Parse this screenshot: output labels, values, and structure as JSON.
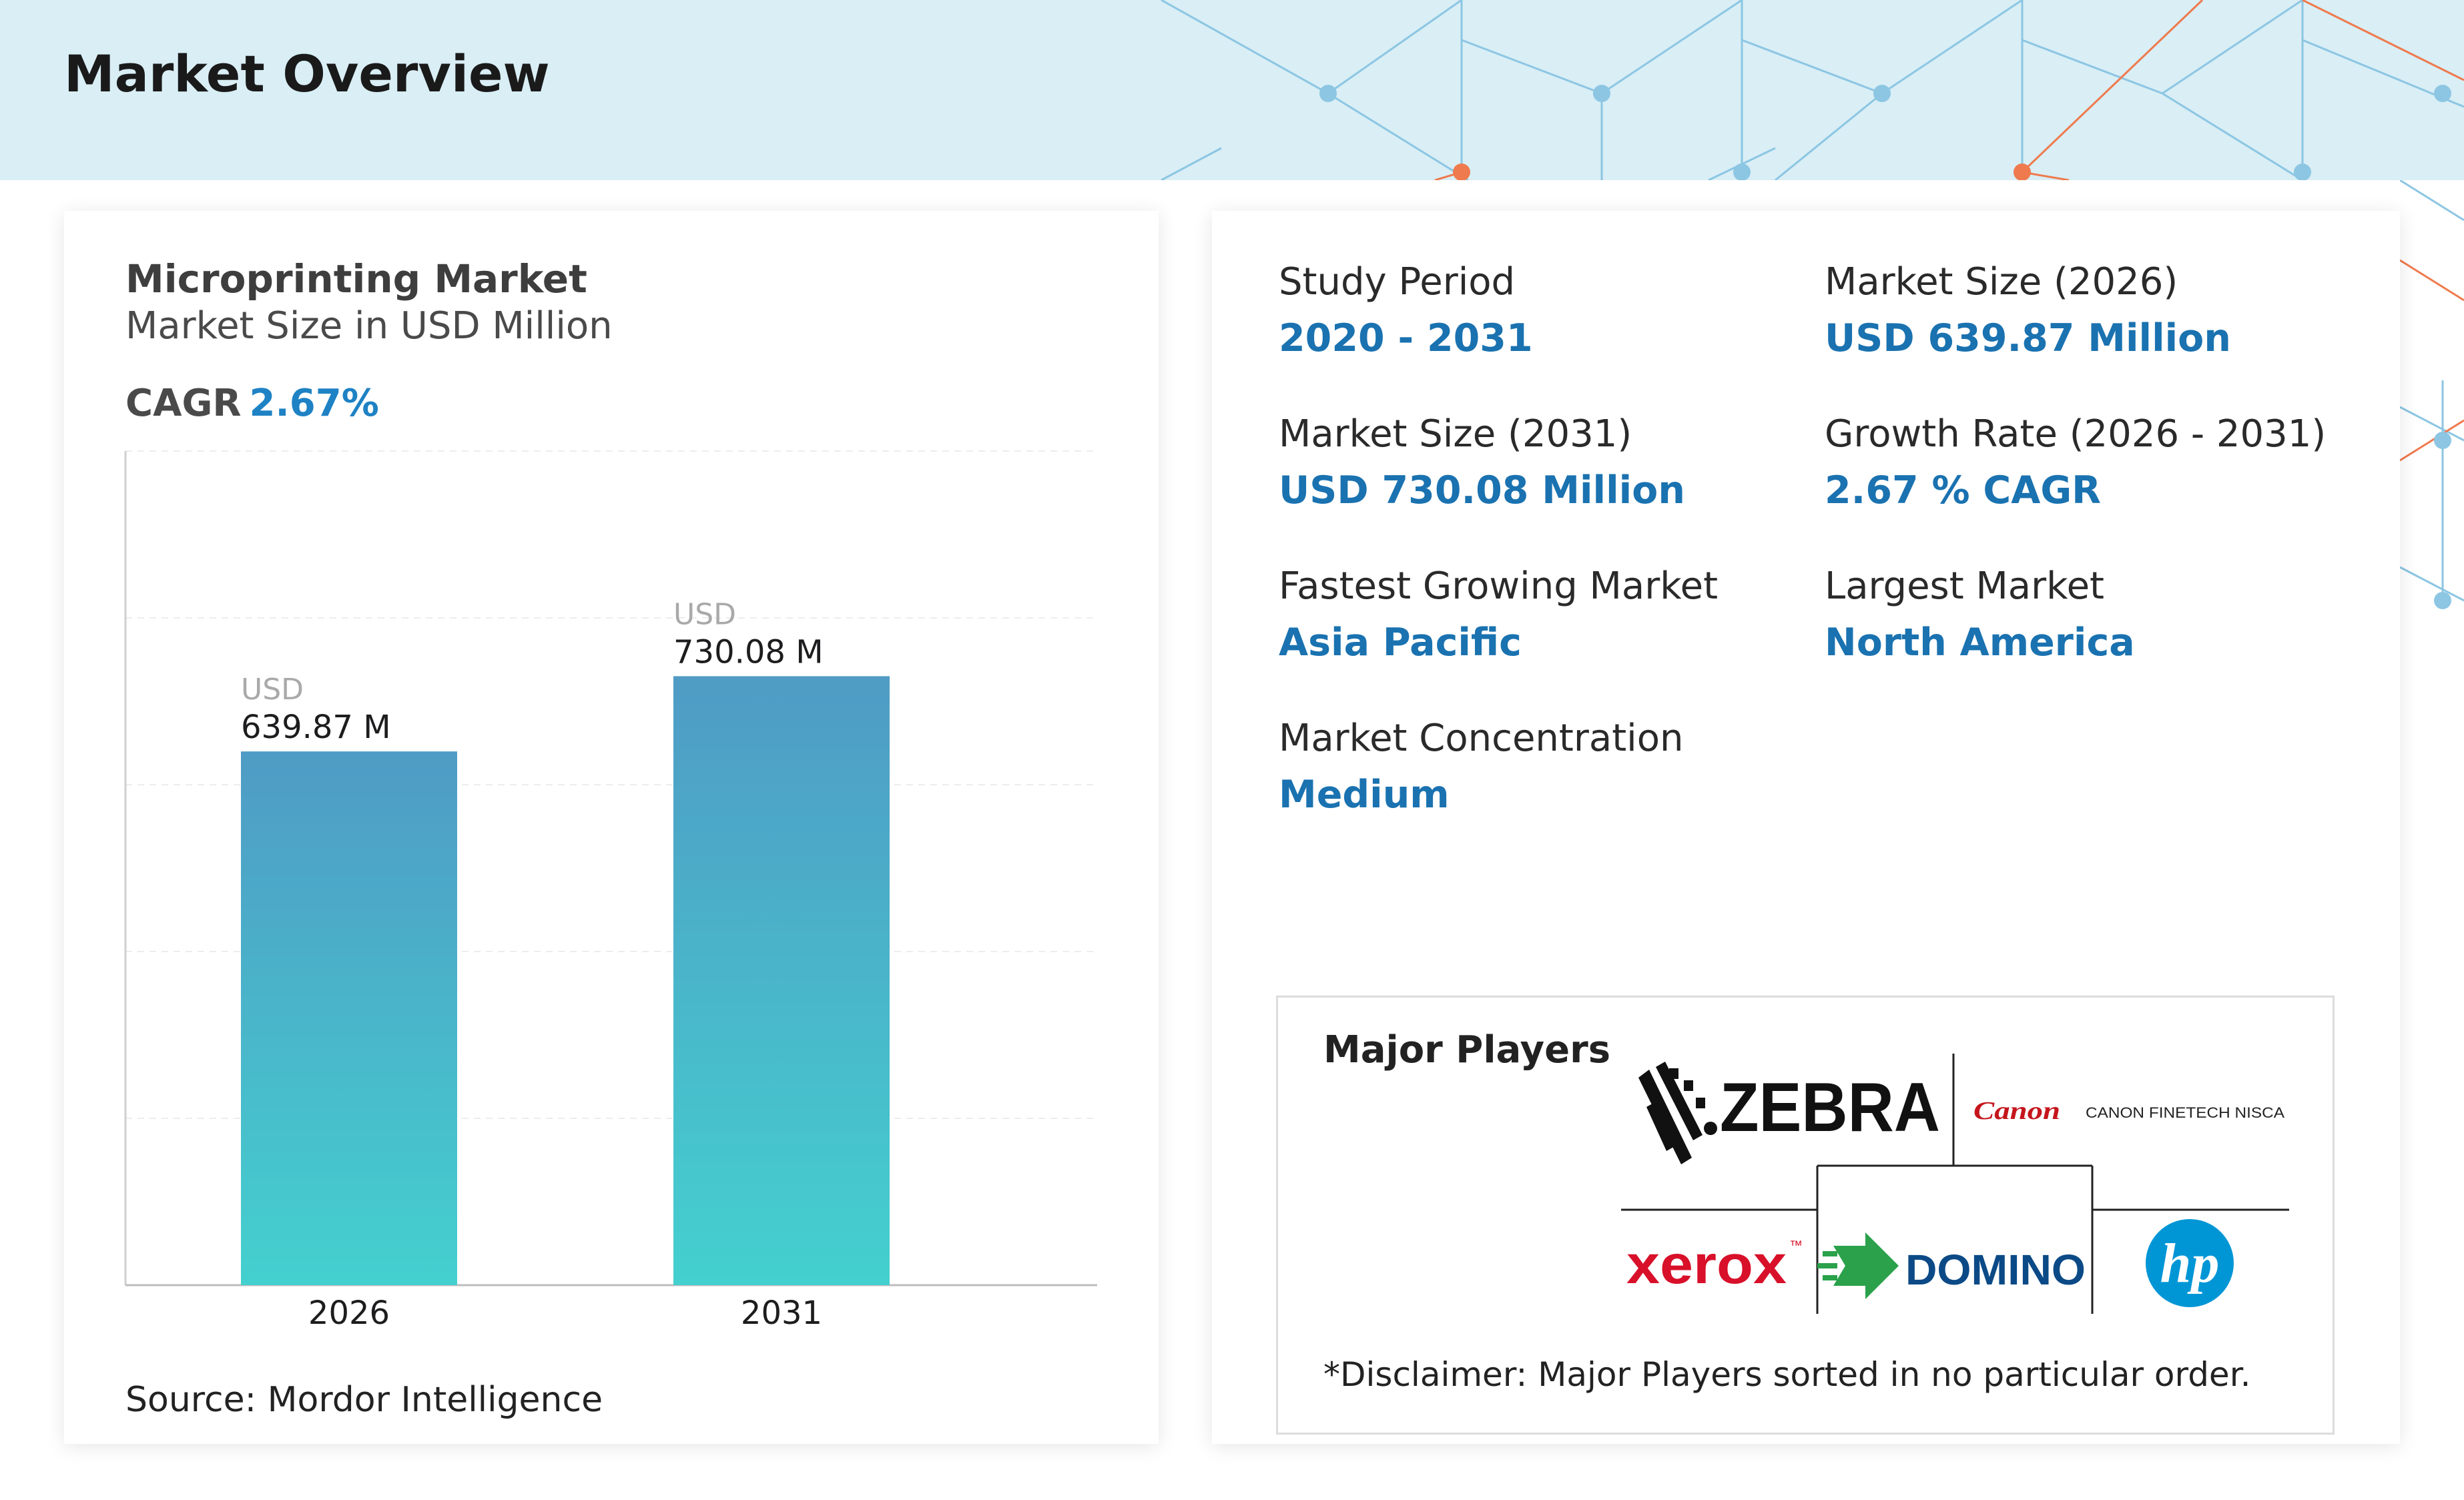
{
  "header": {
    "title": "Market Overview"
  },
  "chart_card": {
    "title": "Microprinting Market",
    "subtitle": "Market Size in USD Million",
    "cagr_label": "CAGR",
    "cagr_value": "2.67%",
    "source": "Source: Mordor Intelligence"
  },
  "chart_data": {
    "type": "bar",
    "categories": [
      "2026",
      "2031"
    ],
    "values": [
      639.87,
      730.08
    ],
    "data_labels": [
      {
        "prefix": "USD",
        "value": "639.87 M"
      },
      {
        "prefix": "USD",
        "value": "730.08 M"
      }
    ],
    "title": "Microprinting Market",
    "subtitle": "Market Size in USD Million",
    "xlabel": "",
    "ylabel": "",
    "ylim": [
      0,
      1000
    ],
    "grid": true,
    "legend": "none",
    "bar_gradient": [
      "#4f9bc5",
      "#44d0cf"
    ]
  },
  "stats": [
    {
      "label": "Study Period",
      "value": "2020 - 2031"
    },
    {
      "label": "Market Size (2026)",
      "value": "USD 639.87 Million"
    },
    {
      "label": "Market Size (2031)",
      "value": "USD 730.08 Million"
    },
    {
      "label": "Growth Rate (2026 - 2031)",
      "value": "2.67 % CAGR"
    },
    {
      "label": "Fastest Growing Market",
      "value": "Asia Pacific"
    },
    {
      "label": "Largest Market",
      "value": "North America"
    },
    {
      "label": "Market Concentration",
      "value": "Medium"
    }
  ],
  "players": {
    "title": "Major Players",
    "logos": [
      "ZEBRA",
      "Canon",
      "CANON FINETECH NISCA",
      "xerox",
      "DOMINO",
      "hp"
    ],
    "disclaimer": "*Disclaimer: Major Players sorted in no particular order."
  },
  "colors": {
    "accent": "#1a72b0",
    "banner": "#d9eef5",
    "network_blue": "#8cc6e3",
    "network_orange": "#ef7a4d",
    "zebra": "#111111",
    "canon": "#c4161c",
    "xerox": "#d8102a",
    "domino_text": "#0b4a86",
    "domino_arrow": "#2aa14a",
    "hp": "#0096d6"
  }
}
